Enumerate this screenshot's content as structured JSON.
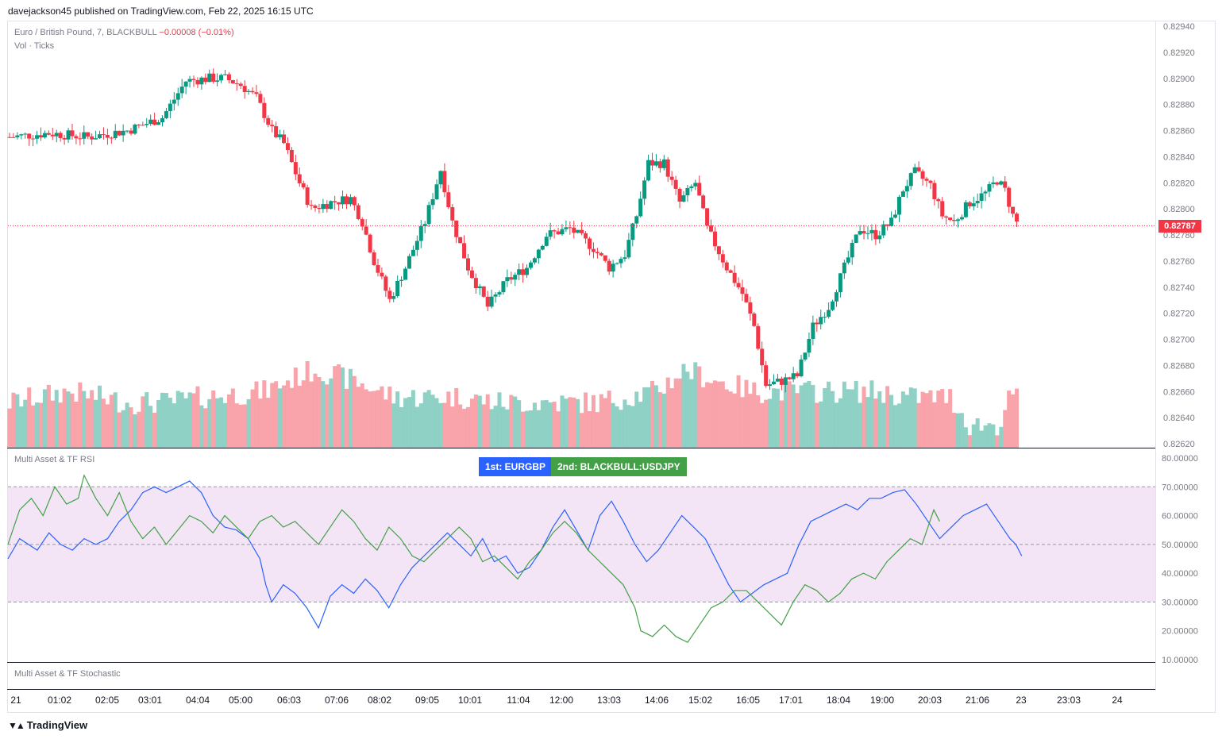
{
  "header": {
    "publish_line": "davejackson45 published on TradingView.com, Feb 22, 2025 16:15 UTC"
  },
  "legend": {
    "symbol": "Euro / British Pound, 7, BLACKBULL",
    "change": "−0.00008 (−0.01%)",
    "volume": "Vol · Ticks"
  },
  "price_axis": {
    "labels": [
      "0.82940",
      "0.82920",
      "0.82900",
      "0.82880",
      "0.82860",
      "0.82840",
      "0.82820",
      "0.82800",
      "0.82780",
      "0.82760",
      "0.82740",
      "0.82720",
      "0.82700",
      "0.82680",
      "0.82660",
      "0.82640",
      "0.82620"
    ],
    "last_price": "0.82787",
    "up_color": "#089981",
    "down_color": "#f23645"
  },
  "rsi_pane": {
    "title": "Multi Asset & TF RSI",
    "axis_labels": [
      "80.00000",
      "70.00000",
      "60.00000",
      "50.00000",
      "40.00000",
      "30.00000",
      "20.00000",
      "10.00000"
    ],
    "badge_first": "1st: EURGBP",
    "badge_second": "2nd: BLACKBULL:USDJPY",
    "first_color": "#2962ff",
    "second_color": "#43a047",
    "band_color": "#f3e5f5"
  },
  "stoch_pane": {
    "title": "Multi Asset & TF Stochastic"
  },
  "time_axis": {
    "labels": [
      "21",
      "01:02",
      "02:05",
      "03:01",
      "04:04",
      "05:00",
      "06:03",
      "07:06",
      "08:02",
      "09:05",
      "10:01",
      "11:04",
      "12:00",
      "13:03",
      "14:06",
      "15:02",
      "16:05",
      "17:01",
      "18:04",
      "19:00",
      "20:03",
      "21:06",
      "23",
      "23:03",
      "24"
    ]
  },
  "footer": {
    "brand": "TradingView",
    "brand_icon": "tradingview-logo-icon"
  },
  "chart_data": {
    "type": "candlestick",
    "anchors": {
      "x_time_ticks": [
        "21",
        "01:02",
        "02:05",
        "03:01",
        "04:04",
        "05:00",
        "06:03",
        "07:06",
        "08:02",
        "09:05",
        "10:01",
        "11:04",
        "12:00",
        "13:03",
        "14:06",
        "15:02",
        "16:05",
        "17:01",
        "18:04",
        "19:00",
        "20:03",
        "21:06",
        "23",
        "23:03",
        "24"
      ],
      "close_path": [
        [
          0,
          0.82855
        ],
        [
          20,
          0.82858
        ],
        [
          40,
          0.82855
        ],
        [
          60,
          0.8286
        ],
        [
          78,
          0.8287
        ],
        [
          90,
          0.82898
        ],
        [
          102,
          0.829
        ],
        [
          110,
          0.829
        ],
        [
          118,
          0.82895
        ],
        [
          126,
          0.82885
        ],
        [
          134,
          0.8286
        ],
        [
          140,
          0.8285
        ],
        [
          148,
          0.8282
        ],
        [
          154,
          0.828
        ],
        [
          164,
          0.82805
        ],
        [
          174,
          0.82808
        ],
        [
          180,
          0.8279
        ],
        [
          186,
          0.8276
        ],
        [
          194,
          0.8273
        ],
        [
          202,
          0.82755
        ],
        [
          212,
          0.8279
        ],
        [
          220,
          0.8283
        ],
        [
          226,
          0.8279
        ],
        [
          234,
          0.82755
        ],
        [
          244,
          0.82725
        ],
        [
          254,
          0.82745
        ],
        [
          264,
          0.82755
        ],
        [
          274,
          0.8278
        ],
        [
          286,
          0.82785
        ],
        [
          298,
          0.8277
        ],
        [
          306,
          0.82755
        ],
        [
          314,
          0.82765
        ],
        [
          320,
          0.82795
        ],
        [
          326,
          0.82835
        ],
        [
          334,
          0.82835
        ],
        [
          342,
          0.82805
        ],
        [
          350,
          0.8282
        ],
        [
          356,
          0.82785
        ],
        [
          366,
          0.82755
        ],
        [
          374,
          0.82735
        ],
        [
          380,
          0.8271
        ],
        [
          386,
          0.82665
        ],
        [
          394,
          0.82668
        ],
        [
          402,
          0.82672
        ],
        [
          410,
          0.8271
        ],
        [
          418,
          0.82725
        ],
        [
          426,
          0.82755
        ],
        [
          434,
          0.82785
        ],
        [
          442,
          0.8278
        ],
        [
          450,
          0.8279
        ],
        [
          456,
          0.82815
        ],
        [
          462,
          0.82828
        ],
        [
          470,
          0.82818
        ],
        [
          476,
          0.82795
        ],
        [
          482,
          0.8279
        ],
        [
          490,
          0.82805
        ],
        [
          498,
          0.82812
        ],
        [
          504,
          0.82822
        ],
        [
          508,
          0.82814
        ],
        [
          512,
          0.82795
        ],
        [
          515,
          0.82787
        ]
      ],
      "volume_path": [
        [
          0,
          3
        ],
        [
          30,
          4
        ],
        [
          60,
          3
        ],
        [
          80,
          3
        ],
        [
          100,
          3.5
        ],
        [
          130,
          4
        ],
        [
          156,
          6
        ],
        [
          175,
          5
        ],
        [
          196,
          3.5
        ],
        [
          230,
          3.5
        ],
        [
          250,
          3
        ],
        [
          276,
          3
        ],
        [
          300,
          3
        ],
        [
          330,
          4
        ],
        [
          345,
          6
        ],
        [
          360,
          5
        ],
        [
          380,
          4
        ],
        [
          400,
          4
        ],
        [
          420,
          4
        ],
        [
          440,
          4
        ],
        [
          460,
          3.5
        ],
        [
          480,
          3.5
        ],
        [
          490,
          1
        ],
        [
          505,
          1
        ],
        [
          512,
          4
        ],
        [
          515,
          3
        ]
      ],
      "rsi_eurgbp": [
        [
          0,
          45
        ],
        [
          4,
          52
        ],
        [
          10,
          48
        ],
        [
          14,
          54
        ],
        [
          18,
          50
        ],
        [
          22,
          48
        ],
        [
          26,
          52
        ],
        [
          30,
          50
        ],
        [
          34,
          52
        ],
        [
          38,
          58
        ],
        [
          42,
          62
        ],
        [
          46,
          68
        ],
        [
          50,
          70
        ],
        [
          54,
          68
        ],
        [
          58,
          70
        ],
        [
          62,
          72
        ],
        [
          66,
          68
        ],
        [
          70,
          60
        ],
        [
          74,
          56
        ],
        [
          78,
          55
        ],
        [
          82,
          52
        ],
        [
          86,
          45
        ],
        [
          88,
          36
        ],
        [
          90,
          30
        ],
        [
          94,
          36
        ],
        [
          98,
          33
        ],
        [
          102,
          28
        ],
        [
          106,
          21
        ],
        [
          110,
          32
        ],
        [
          114,
          36
        ],
        [
          118,
          33
        ],
        [
          122,
          38
        ],
        [
          126,
          34
        ],
        [
          130,
          28
        ],
        [
          134,
          36
        ],
        [
          138,
          42
        ],
        [
          142,
          46
        ],
        [
          146,
          50
        ],
        [
          150,
          54
        ],
        [
          154,
          50
        ],
        [
          158,
          46
        ],
        [
          162,
          52
        ],
        [
          166,
          44
        ],
        [
          170,
          46
        ],
        [
          174,
          40
        ],
        [
          178,
          42
        ],
        [
          182,
          48
        ],
        [
          186,
          56
        ],
        [
          190,
          62
        ],
        [
          194,
          55
        ],
        [
          198,
          48
        ],
        [
          202,
          60
        ],
        [
          206,
          65
        ],
        [
          210,
          58
        ],
        [
          214,
          50
        ],
        [
          218,
          44
        ],
        [
          222,
          48
        ],
        [
          226,
          54
        ],
        [
          230,
          60
        ],
        [
          234,
          56
        ],
        [
          238,
          52
        ],
        [
          242,
          44
        ],
        [
          246,
          36
        ],
        [
          250,
          30
        ],
        [
          254,
          33
        ],
        [
          258,
          36
        ],
        [
          262,
          38
        ],
        [
          266,
          40
        ],
        [
          270,
          50
        ],
        [
          274,
          58
        ],
        [
          278,
          60
        ],
        [
          282,
          62
        ],
        [
          286,
          64
        ],
        [
          290,
          62
        ],
        [
          294,
          66
        ],
        [
          298,
          66
        ],
        [
          302,
          68
        ],
        [
          306,
          69
        ],
        [
          310,
          64
        ],
        [
          314,
          58
        ],
        [
          318,
          52
        ],
        [
          322,
          56
        ],
        [
          326,
          60
        ],
        [
          330,
          62
        ],
        [
          334,
          64
        ],
        [
          338,
          58
        ],
        [
          342,
          52
        ],
        [
          344,
          50
        ],
        [
          346,
          46
        ]
      ],
      "rsi_usdjpy": [
        [
          0,
          50
        ],
        [
          4,
          62
        ],
        [
          8,
          66
        ],
        [
          12,
          60
        ],
        [
          16,
          70
        ],
        [
          20,
          64
        ],
        [
          24,
          66
        ],
        [
          26,
          74
        ],
        [
          30,
          66
        ],
        [
          34,
          60
        ],
        [
          38,
          68
        ],
        [
          42,
          58
        ],
        [
          46,
          52
        ],
        [
          50,
          56
        ],
        [
          54,
          50
        ],
        [
          58,
          55
        ],
        [
          62,
          60
        ],
        [
          66,
          58
        ],
        [
          70,
          54
        ],
        [
          74,
          60
        ],
        [
          78,
          56
        ],
        [
          82,
          52
        ],
        [
          86,
          58
        ],
        [
          90,
          60
        ],
        [
          94,
          56
        ],
        [
          98,
          58
        ],
        [
          102,
          54
        ],
        [
          106,
          50
        ],
        [
          110,
          56
        ],
        [
          114,
          62
        ],
        [
          118,
          58
        ],
        [
          122,
          52
        ],
        [
          126,
          48
        ],
        [
          130,
          56
        ],
        [
          134,
          52
        ],
        [
          138,
          46
        ],
        [
          142,
          44
        ],
        [
          146,
          48
        ],
        [
          150,
          52
        ],
        [
          154,
          56
        ],
        [
          158,
          52
        ],
        [
          162,
          44
        ],
        [
          166,
          46
        ],
        [
          170,
          42
        ],
        [
          174,
          38
        ],
        [
          178,
          44
        ],
        [
          182,
          48
        ],
        [
          186,
          54
        ],
        [
          190,
          58
        ],
        [
          194,
          54
        ],
        [
          198,
          48
        ],
        [
          202,
          44
        ],
        [
          206,
          40
        ],
        [
          210,
          36
        ],
        [
          214,
          28
        ],
        [
          216,
          20
        ],
        [
          220,
          18
        ],
        [
          224,
          22
        ],
        [
          228,
          18
        ],
        [
          232,
          16
        ],
        [
          236,
          22
        ],
        [
          240,
          28
        ],
        [
          244,
          30
        ],
        [
          248,
          34
        ],
        [
          252,
          34
        ],
        [
          256,
          30
        ],
        [
          260,
          26
        ],
        [
          264,
          22
        ],
        [
          268,
          30
        ],
        [
          272,
          36
        ],
        [
          276,
          34
        ],
        [
          280,
          30
        ],
        [
          284,
          33
        ],
        [
          288,
          38
        ],
        [
          292,
          40
        ],
        [
          296,
          38
        ],
        [
          300,
          44
        ],
        [
          304,
          48
        ],
        [
          308,
          52
        ],
        [
          312,
          50
        ],
        [
          314,
          56
        ],
        [
          316,
          62
        ],
        [
          318,
          58
        ]
      ]
    }
  }
}
